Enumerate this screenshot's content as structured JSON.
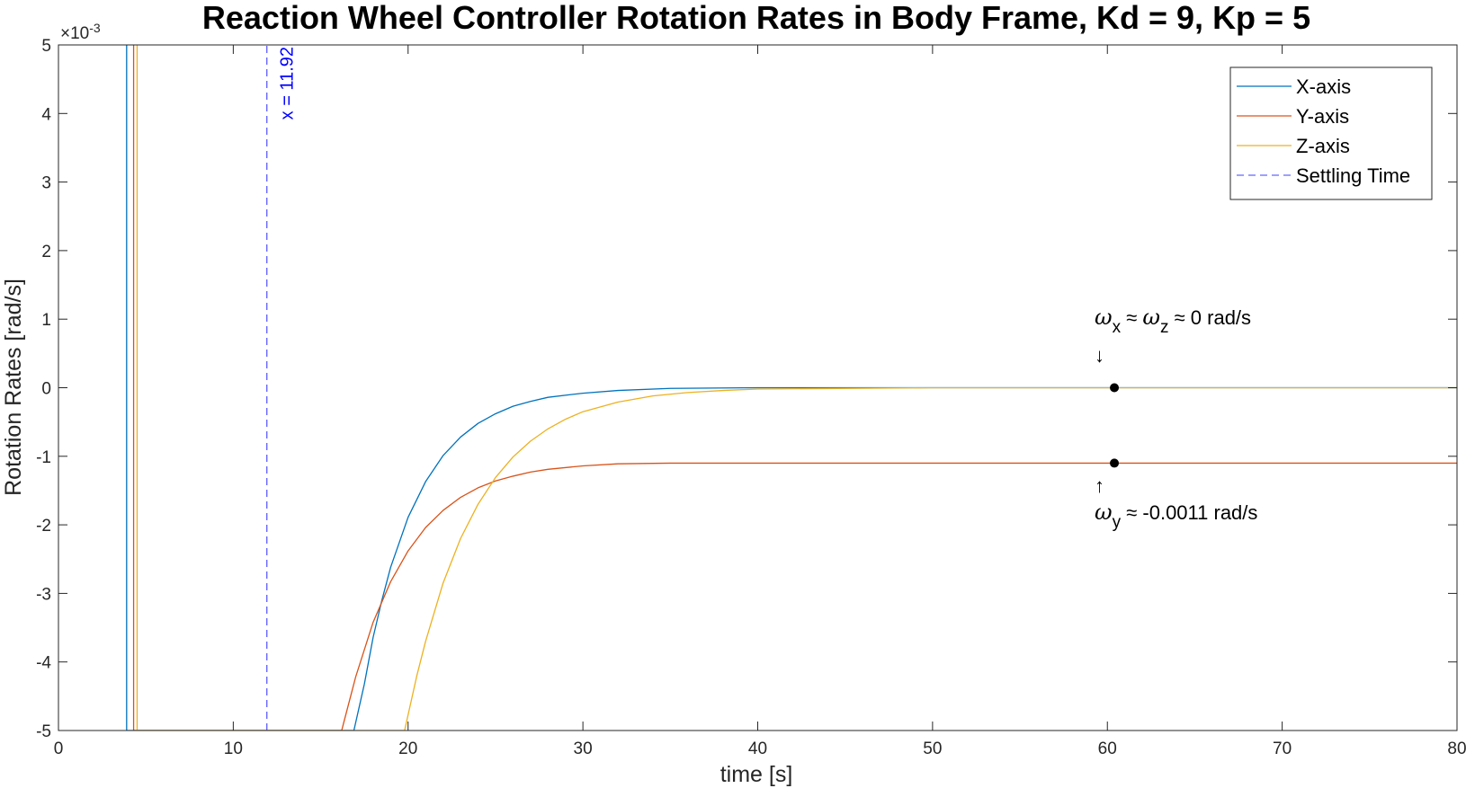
{
  "chart_data": {
    "type": "line",
    "title": "Reaction Wheel Controller Rotation Rates in Body Frame, Kd = 9, Kp = 5",
    "xlabel": "time [s]",
    "ylabel": "Rotation Rates  [rad/s]",
    "xlim": [
      0,
      80
    ],
    "ylim": [
      -0.005,
      0.005
    ],
    "x_ticks": [
      0,
      10,
      20,
      30,
      40,
      50,
      60,
      70,
      80
    ],
    "x_tick_labels": [
      "0",
      "10",
      "20",
      "30",
      "40",
      "50",
      "60",
      "70",
      "80"
    ],
    "y_ticks": [
      -0.005,
      -0.004,
      -0.003,
      -0.002,
      -0.001,
      0,
      0.001,
      0.002,
      0.003,
      0.004,
      0.005
    ],
    "y_tick_labels": [
      "-5",
      "-4",
      "-3",
      "-2",
      "-1",
      "0",
      "1",
      "2",
      "3",
      "4",
      "5"
    ],
    "y_exponent_label": "×10",
    "y_exponent_power": "-3",
    "grid": false,
    "legend_position": "top-right",
    "series": [
      {
        "name": "X-axis",
        "color": "#0072BD",
        "x": [
          3.9,
          3.9,
          16.9,
          17.5,
          18,
          18.5,
          19,
          20,
          21,
          22,
          23,
          24,
          25,
          26,
          27,
          28,
          30,
          32,
          35,
          40,
          50,
          60,
          70,
          80
        ],
        "y": [
          0.005,
          -0.005,
          -0.005,
          -0.00432,
          -0.00364,
          -0.0031,
          -0.00262,
          -0.00189,
          -0.00137,
          -0.00099,
          -0.00072,
          -0.00052,
          -0.00038,
          -0.00027,
          -0.0002,
          -0.00014,
          -8e-05,
          -4e-05,
          -1e-05,
          0,
          0,
          0,
          0,
          0
        ]
      },
      {
        "name": "Y-axis",
        "color": "#D95319",
        "x": [
          4.3,
          4.3,
          16.2,
          17,
          18,
          19,
          20,
          21,
          22,
          23,
          24,
          25,
          26,
          27,
          28,
          30,
          32,
          35,
          40,
          50,
          60,
          70,
          80
        ],
        "y": [
          0.005,
          -0.005,
          -0.005,
          -0.00422,
          -0.00342,
          -0.00283,
          -0.00238,
          -0.00204,
          -0.00179,
          -0.0016,
          -0.00146,
          -0.00136,
          -0.00129,
          -0.00123,
          -0.00119,
          -0.00114,
          -0.00111,
          -0.0011,
          -0.0011,
          -0.0011,
          -0.0011,
          -0.0011,
          -0.0011
        ]
      },
      {
        "name": "Z-axis",
        "color": "#EDB120",
        "x": [
          4.5,
          4.5,
          19.8,
          20.5,
          21,
          22,
          23,
          24,
          25,
          26,
          27,
          28,
          29,
          30,
          32,
          34,
          36,
          38,
          40,
          50,
          60,
          70,
          80
        ],
        "y": [
          0.005,
          -0.005,
          -0.005,
          -0.0042,
          -0.0037,
          -0.00285,
          -0.0022,
          -0.0017,
          -0.00131,
          -0.00101,
          -0.00078,
          -0.0006,
          -0.00046,
          -0.00035,
          -0.00021,
          -0.00012,
          -7e-05,
          -4e-05,
          -2e-05,
          0,
          0,
          0,
          0
        ]
      },
      {
        "name": "Settling Time",
        "color": "#6666FF",
        "style": "dashed",
        "x": [
          11.92,
          11.92
        ],
        "y": [
          -0.005,
          0.005
        ]
      }
    ],
    "markers": [
      {
        "x": 60.4,
        "y": 0,
        "color": "#000000"
      },
      {
        "x": 60.4,
        "y": -0.0011,
        "color": "#000000"
      }
    ],
    "annotations": {
      "settling_label": "x = 11.92",
      "settling_label_color": "#0000FF",
      "top": {
        "x": 60.4,
        "omega": "ω",
        "sub_x": "x",
        "middle": " ≈ ",
        "sub_z": "z",
        "tail": " ≈ 0 rad/s",
        "arrow": "↓"
      },
      "bottom": {
        "x": 60.4,
        "arrow": "↑",
        "omega": "ω",
        "sub_y": "y",
        "tail": " ≈ -0.0011 rad/s"
      }
    }
  }
}
